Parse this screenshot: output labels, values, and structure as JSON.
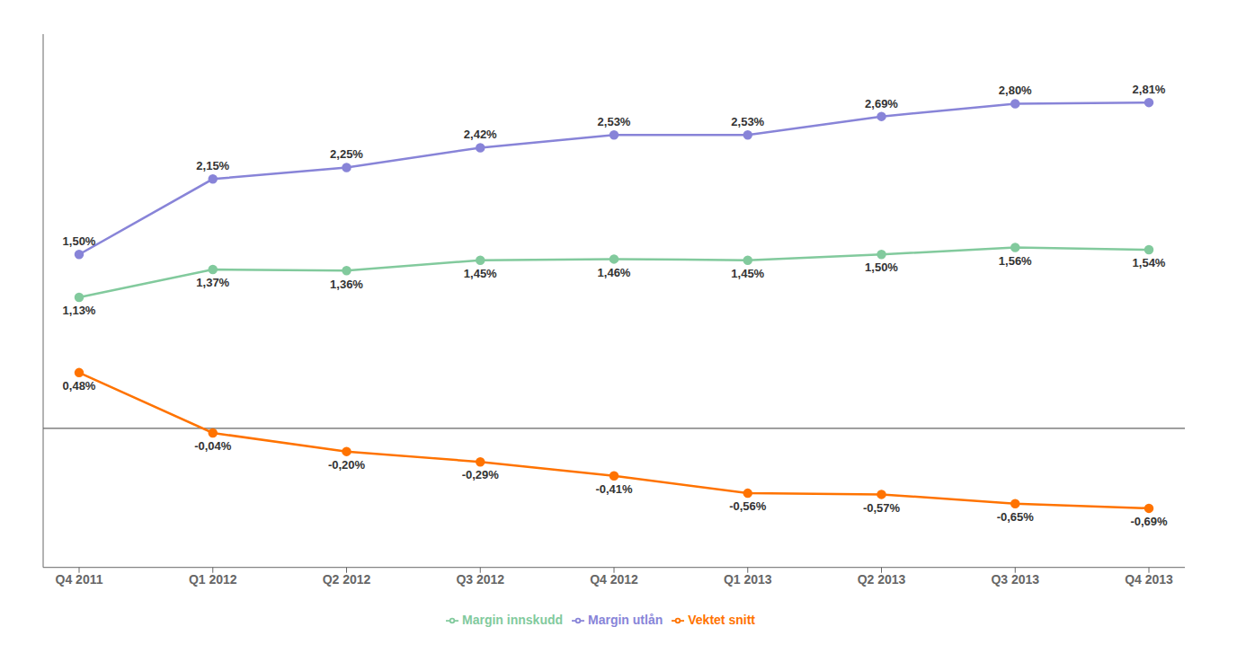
{
  "chart_data": {
    "type": "line",
    "categories": [
      "Q4 2011",
      "Q1 2012",
      "Q2 2012",
      "Q3 2012",
      "Q4 2012",
      "Q1 2013",
      "Q2 2013",
      "Q3 2013",
      "Q4 2013"
    ],
    "series": [
      {
        "name": "Margin utlån",
        "values": [
          1.5,
          2.15,
          2.25,
          2.42,
          2.53,
          2.53,
          2.69,
          2.8,
          2.81
        ],
        "value_labels": [
          "1,50%",
          "2,15%",
          "2,25%",
          "2,42%",
          "2,53%",
          "2,53%",
          "2,69%",
          "2,80%",
          "2,81%"
        ]
      },
      {
        "name": "Margin innskudd",
        "values": [
          1.13,
          1.37,
          1.36,
          1.45,
          1.46,
          1.45,
          1.5,
          1.56,
          1.54
        ],
        "value_labels": [
          "1,13%",
          "1,37%",
          "1,36%",
          "1,45%",
          "1,46%",
          "1,45%",
          "1,50%",
          "1,56%",
          "1,54%"
        ]
      },
      {
        "name": "Vektet snitt",
        "values": [
          0.48,
          -0.04,
          -0.2,
          -0.29,
          -0.41,
          -0.56,
          -0.57,
          -0.65,
          -0.69
        ],
        "value_labels": [
          "0,48%",
          "-0,04%",
          "-0,20%",
          "-0,29%",
          "-0,41%",
          "-0,56%",
          "-0,57%",
          "-0,65%",
          "-0,69%"
        ]
      }
    ],
    "ylim": [
      -1.2,
      3.4
    ],
    "zero_line": 0,
    "tick_labels": "x",
    "data_labels": true,
    "legend": "bottom",
    "grid": false,
    "marker": "circle"
  }
}
